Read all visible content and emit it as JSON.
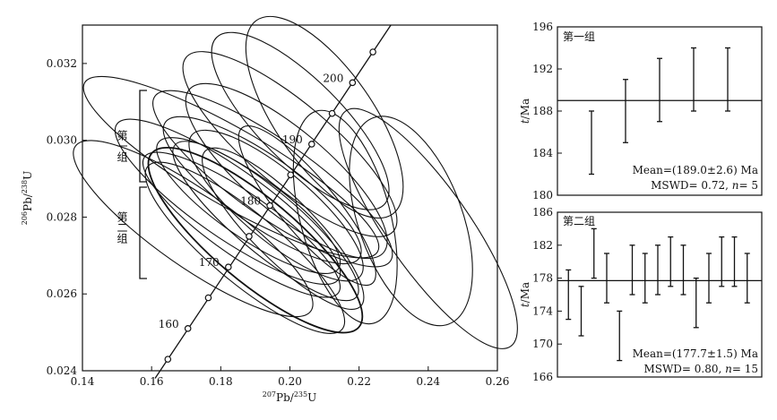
{
  "chart_data": [
    {
      "id": "concordia",
      "type": "scatter",
      "xlabel_mass": "207",
      "xlabel_elem": "Pb/",
      "xlabel_mass2": "235",
      "xlabel_elem2": "U",
      "ylabel_mass": "206",
      "ylabel_elem": "Pb/",
      "ylabel_mass2": "238",
      "ylabel_elem2": "U",
      "xlim": [
        0.14,
        0.26
      ],
      "ylim": [
        0.024,
        0.033
      ],
      "xticks": [
        "0.14",
        "0.16",
        "0.18",
        "0.20",
        "0.22",
        "0.24",
        "0.26"
      ],
      "yticks": [
        "0.024",
        "0.026",
        "0.028",
        "0.030",
        "0.032"
      ],
      "concordia_ages": [
        {
          "age": 160,
          "x": 0.1705,
          "y": 0.0251,
          "label": "160"
        },
        {
          "age": 170,
          "x": 0.1822,
          "y": 0.0267,
          "label": "170"
        },
        {
          "age": 180,
          "x": 0.1942,
          "y": 0.0283,
          "label": "180"
        },
        {
          "age": 190,
          "x": 0.2063,
          "y": 0.0299,
          "label": "190"
        },
        {
          "age": 200,
          "x": 0.2181,
          "y": 0.0315,
          "label": "200"
        }
      ],
      "concordia_minor_ticks": [
        {
          "x": 0.1647,
          "y": 0.0243
        },
        {
          "x": 0.1764,
          "y": 0.0259
        },
        {
          "x": 0.1882,
          "y": 0.0275
        },
        {
          "x": 0.2002,
          "y": 0.0291
        },
        {
          "x": 0.2122,
          "y": 0.0307
        },
        {
          "x": 0.224,
          "y": 0.0323
        }
      ],
      "group_labels": [
        "第一组",
        "第二组"
      ],
      "group_ranges": [
        [
          0.0289,
          0.0312
        ],
        [
          0.0264,
          0.0288
        ]
      ],
      "ellipses": [
        {
          "x": 0.172,
          "y": 0.0277,
          "a": 0.011,
          "b": 0.0017,
          "angle": -55
        },
        {
          "x": 0.182,
          "y": 0.0284,
          "a": 0.01,
          "b": 0.0016,
          "angle": -55
        },
        {
          "x": 0.183,
          "y": 0.0293,
          "a": 0.011,
          "b": 0.002,
          "angle": -60
        },
        {
          "x": 0.186,
          "y": 0.0278,
          "a": 0.009,
          "b": 0.0014,
          "angle": -55
        },
        {
          "x": 0.187,
          "y": 0.0272,
          "a": 0.01,
          "b": 0.0015,
          "angle": -50
        },
        {
          "x": 0.188,
          "y": 0.0283,
          "a": 0.009,
          "b": 0.0013,
          "angle": -55
        },
        {
          "x": 0.19,
          "y": 0.0274,
          "a": 0.012,
          "b": 0.0016,
          "angle": -50
        },
        {
          "x": 0.192,
          "y": 0.0287,
          "a": 0.01,
          "b": 0.0014,
          "angle": -55
        },
        {
          "x": 0.193,
          "y": 0.0279,
          "a": 0.009,
          "b": 0.0014,
          "angle": -50
        },
        {
          "x": 0.195,
          "y": 0.029,
          "a": 0.011,
          "b": 0.0017,
          "angle": -55
        },
        {
          "x": 0.196,
          "y": 0.0283,
          "a": 0.01,
          "b": 0.0013,
          "angle": -50
        },
        {
          "x": 0.198,
          "y": 0.0277,
          "a": 0.009,
          "b": 0.0013,
          "angle": -45
        },
        {
          "x": 0.199,
          "y": 0.0292,
          "a": 0.012,
          "b": 0.0015,
          "angle": -50
        },
        {
          "x": 0.2,
          "y": 0.0299,
          "a": 0.012,
          "b": 0.0016,
          "angle": -50
        },
        {
          "x": 0.203,
          "y": 0.0305,
          "a": 0.012,
          "b": 0.0014,
          "angle": -45
        },
        {
          "x": 0.205,
          "y": 0.0283,
          "a": 0.008,
          "b": 0.0012,
          "angle": -40
        },
        {
          "x": 0.21,
          "y": 0.0306,
          "a": 0.014,
          "b": 0.0014,
          "angle": -35
        },
        {
          "x": 0.216,
          "y": 0.028,
          "a": 0.013,
          "b": 0.0013,
          "angle": -15
        },
        {
          "x": 0.235,
          "y": 0.0279,
          "a": 0.015,
          "b": 0.0013,
          "angle": -20
        },
        {
          "x": 0.24,
          "y": 0.0277,
          "a": 0.012,
          "b": 0.0017,
          "angle": -35
        }
      ]
    },
    {
      "id": "group1",
      "type": "errorbar",
      "title": "第一组",
      "ylabel_italic": "t",
      "ylabel_unit": "/Ma",
      "ylim": [
        180,
        196
      ],
      "yticks": [
        "180",
        "184",
        "188",
        "192",
        "196"
      ],
      "mean_line": 189.0,
      "points": [
        {
          "low": 182,
          "high": 188
        },
        {
          "low": 185,
          "high": 191
        },
        {
          "low": 187,
          "high": 193
        },
        {
          "low": 188,
          "high": 194
        },
        {
          "low": 188,
          "high": 194
        }
      ],
      "note1": "Mean=(189.0±2.6) Ma",
      "note2_prefix": "MSWD= 0.72, ",
      "note2_n": "n",
      "note2_suffix": "= 5"
    },
    {
      "id": "group2",
      "type": "errorbar",
      "title": "第二组",
      "ylabel_italic": "t",
      "ylabel_unit": "/Ma",
      "ylim": [
        166,
        186
      ],
      "yticks": [
        "166",
        "170",
        "174",
        "178",
        "182",
        "186"
      ],
      "mean_line": 177.7,
      "points": [
        {
          "low": 173,
          "high": 179
        },
        {
          "low": 171,
          "high": 177
        },
        {
          "low": 178,
          "high": 184
        },
        {
          "low": 175,
          "high": 181
        },
        {
          "low": 168,
          "high": 174
        },
        {
          "low": 176,
          "high": 182
        },
        {
          "low": 175,
          "high": 181
        },
        {
          "low": 176,
          "high": 182
        },
        {
          "low": 177,
          "high": 183
        },
        {
          "low": 176,
          "high": 182
        },
        {
          "low": 172,
          "high": 178
        },
        {
          "low": 175,
          "high": 181
        },
        {
          "low": 177,
          "high": 183
        },
        {
          "low": 177,
          "high": 183
        },
        {
          "low": 175,
          "high": 181
        }
      ],
      "note1": "Mean=(177.7±1.5) Ma",
      "note2_prefix": "MSWD= 0.80, ",
      "note2_n": "n",
      "note2_suffix": "= 15"
    }
  ]
}
